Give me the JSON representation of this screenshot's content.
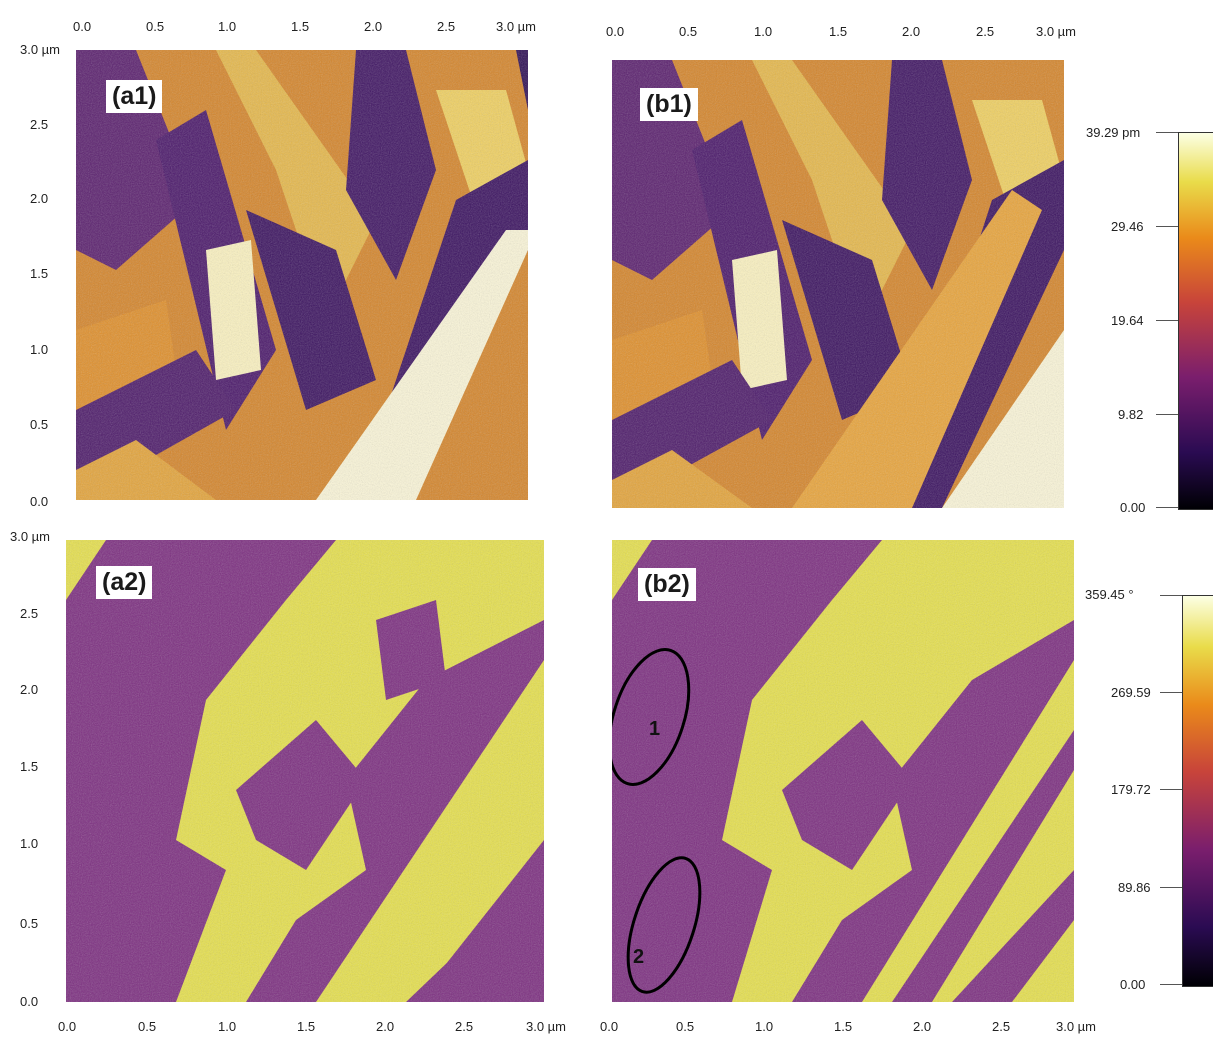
{
  "panels": [
    {
      "id": "a1",
      "label": "(a1)",
      "type": "amplitude"
    },
    {
      "id": "b1",
      "label": "(b1)",
      "type": "amplitude"
    },
    {
      "id": "a2",
      "label": "(a2)",
      "type": "phase"
    },
    {
      "id": "b2",
      "label": "(b2)",
      "type": "phase"
    }
  ],
  "axes": {
    "a_top_x": [
      "0.0",
      "0.5",
      "1.0",
      "1.5",
      "2.0",
      "2.5",
      "3.0 µm"
    ],
    "b_top_x": [
      "0.0",
      "0.5",
      "1.0",
      "1.5",
      "2.0",
      "2.5",
      "3.0 µm"
    ],
    "a_bottom_x": [
      "0.0",
      "0.5",
      "1.0",
      "1.5",
      "2.0",
      "2.5",
      "3.0 µm"
    ],
    "b_bottom_x": [
      "0.0",
      "0.5",
      "1.0",
      "1.5",
      "2.0",
      "2.5",
      "3.0 µm"
    ],
    "a1_y": [
      "3.0 µm",
      "2.5",
      "2.0",
      "1.5",
      "1.0",
      "0.5",
      "0.0"
    ],
    "a2_y": [
      "3.0 µm",
      "2.5",
      "2.0",
      "1.5",
      "1.0",
      "0.5",
      "0.0"
    ]
  },
  "colorbars": {
    "amplitude": {
      "labels": [
        "39.29 pm",
        "29.46",
        "19.64",
        "9.82",
        "0.00"
      ]
    },
    "phase": {
      "labels": [
        "359.45 °",
        "269.59",
        "179.72",
        "89.86",
        "0.00"
      ]
    }
  },
  "annotations": {
    "ellipse1": "1",
    "ellipse2": "2"
  },
  "colors": {
    "dark": "#3d1460",
    "mid_purple": "#7a2a7c",
    "orange": "#d98a1e",
    "yellow": "#e8e25a",
    "white": "#fbf6d8"
  }
}
